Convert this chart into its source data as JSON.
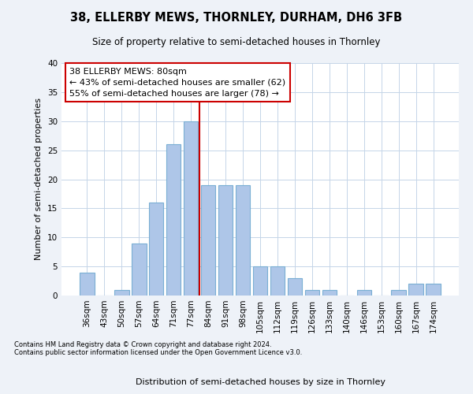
{
  "title": "38, ELLERBY MEWS, THORNLEY, DURHAM, DH6 3FB",
  "subtitle": "Size of property relative to semi-detached houses in Thornley",
  "xlabel": "Distribution of semi-detached houses by size in Thornley",
  "ylabel": "Number of semi-detached properties",
  "footnote1": "Contains HM Land Registry data © Crown copyright and database right 2024.",
  "footnote2": "Contains public sector information licensed under the Open Government Licence v3.0.",
  "categories": [
    "36sqm",
    "43sqm",
    "50sqm",
    "57sqm",
    "64sqm",
    "71sqm",
    "77sqm",
    "84sqm",
    "91sqm",
    "98sqm",
    "105sqm",
    "112sqm",
    "119sqm",
    "126sqm",
    "133sqm",
    "140sqm",
    "146sqm",
    "153sqm",
    "160sqm",
    "167sqm",
    "174sqm"
  ],
  "values": [
    4,
    0,
    1,
    9,
    16,
    26,
    30,
    19,
    19,
    19,
    5,
    5,
    3,
    1,
    1,
    0,
    1,
    0,
    1,
    2,
    2
  ],
  "bar_color": "#aec6e8",
  "bar_edge_color": "#7aafd4",
  "vline_x_index": 6.5,
  "vline_color": "#cc0000",
  "annotation_title": "38 ELLERBY MEWS: 80sqm",
  "annotation_line1": "← 43% of semi-detached houses are smaller (62)",
  "annotation_line2": "55% of semi-detached houses are larger (78) →",
  "annotation_box_color": "#cc0000",
  "ylim": [
    0,
    40
  ],
  "yticks": [
    0,
    5,
    10,
    15,
    20,
    25,
    30,
    35,
    40
  ],
  "bg_color": "#eef2f8",
  "plot_bg_color": "#ffffff",
  "grid_color": "#c5d5e8"
}
